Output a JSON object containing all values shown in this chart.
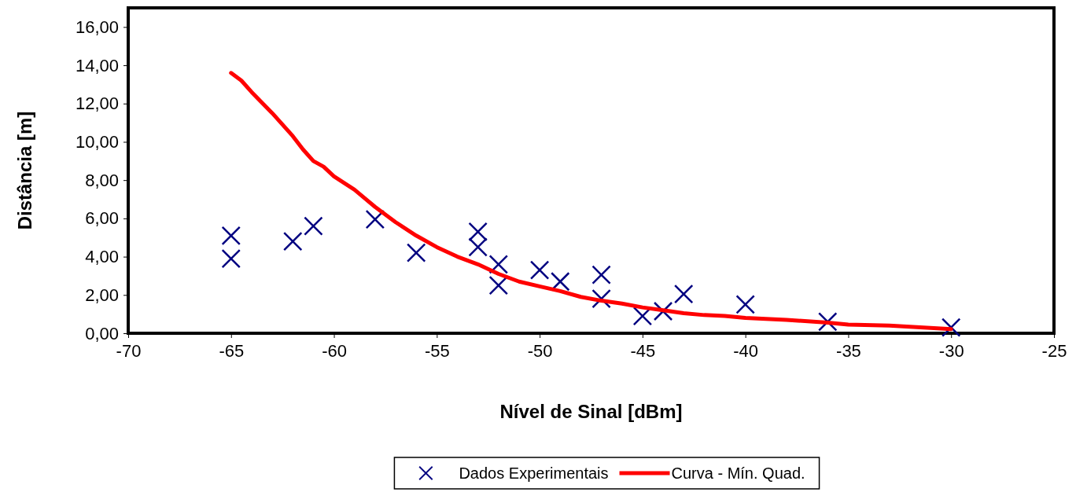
{
  "chart_data": {
    "type": "scatter",
    "xlabel": "Nível de Sinal [dBm]",
    "ylabel": "Distância [m]",
    "xlim": [
      -70,
      -25
    ],
    "xticks": [
      -70,
      -65,
      -60,
      -55,
      -50,
      -45,
      -40,
      -35,
      -30,
      -25
    ],
    "ylim": [
      0,
      17
    ],
    "yticks": [
      {
        "value": 0,
        "label": "0,00"
      },
      {
        "value": 2,
        "label": "2,00"
      },
      {
        "value": 4,
        "label": "4,00"
      },
      {
        "value": 6,
        "label": "6,00"
      },
      {
        "value": 8,
        "label": "8,00"
      },
      {
        "value": 10,
        "label": "10,00"
      },
      {
        "value": 12,
        "label": "12,00"
      },
      {
        "value": 14,
        "label": "14,00"
      },
      {
        "value": 16,
        "label": "16,00"
      }
    ],
    "grid": false,
    "legend": "bottom",
    "series": [
      {
        "name": "Dados Experimentais",
        "marker": "cross",
        "color": "#000080",
        "x": [
          -65,
          -65,
          -62,
          -61,
          -58,
          -56,
          -53,
          -53,
          -52,
          -52,
          -50,
          -49,
          -47,
          -47,
          -45,
          -44,
          -43,
          -40,
          -36,
          -30
        ],
        "values": [
          5.1,
          3.9,
          4.8,
          5.6,
          5.95,
          4.2,
          5.3,
          4.5,
          3.6,
          2.5,
          3.3,
          2.7,
          3.05,
          1.8,
          0.9,
          1.15,
          2.05,
          1.5,
          0.6,
          0.3
        ]
      },
      {
        "name": "Curva - Mín. Quad.",
        "type": "line",
        "marker": "none",
        "line_style": "solid",
        "color": "#ff0000",
        "x": [
          -65,
          -64.5,
          -64,
          -63,
          -62,
          -61.5,
          -61,
          -60.5,
          -60,
          -59,
          -58,
          -57,
          -56,
          -55,
          -54,
          -53,
          -52,
          -51,
          -50,
          -49,
          -48,
          -47,
          -46,
          -45,
          -44,
          -43,
          -42,
          -41,
          -40,
          -38,
          -36,
          -35,
          -33,
          -30
        ],
        "values": [
          13.6,
          13.2,
          12.6,
          11.5,
          10.3,
          9.6,
          9.0,
          8.7,
          8.2,
          7.5,
          6.6,
          5.8,
          5.1,
          4.5,
          4.0,
          3.6,
          3.1,
          2.7,
          2.45,
          2.2,
          1.9,
          1.7,
          1.55,
          1.35,
          1.2,
          1.05,
          0.95,
          0.9,
          0.8,
          0.7,
          0.55,
          0.45,
          0.4,
          0.22
        ]
      }
    ]
  }
}
